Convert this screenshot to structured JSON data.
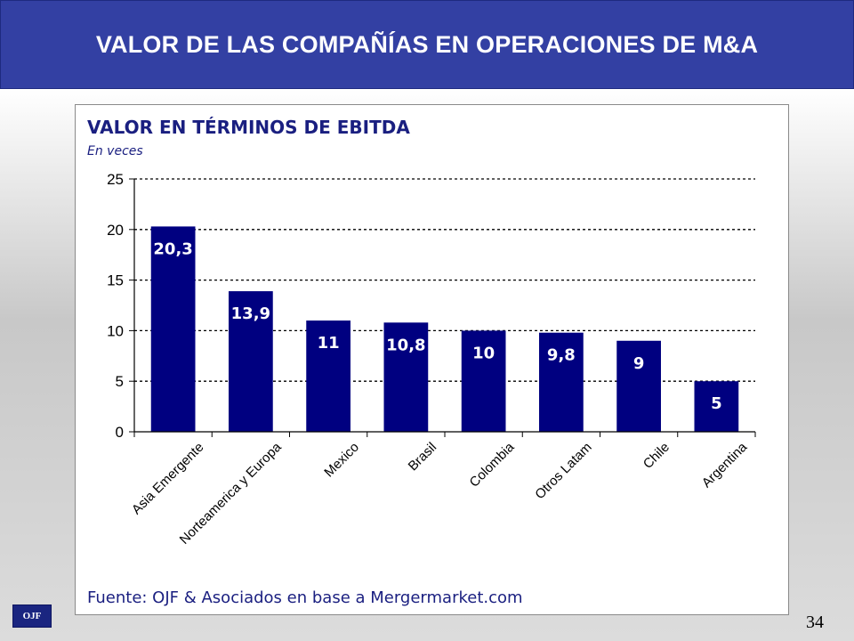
{
  "header": {
    "title": "VALOR DE LAS COMPAÑÍAS EN OPERACIONES DE M&A"
  },
  "chart_data": {
    "type": "bar",
    "title": "VALOR EN TÉRMINOS DE EBITDA",
    "subtitle": "En veces",
    "categories": [
      "Asia Emergente",
      "Norteamerica y Europa",
      "Mexico",
      "Brasil",
      "Colombia",
      "Otros Latam",
      "Chile",
      "Argentina"
    ],
    "values": [
      20.3,
      13.9,
      11,
      10.8,
      10,
      9.8,
      9,
      5
    ],
    "data_labels": [
      "20,3",
      "13,9",
      "11",
      "10,8",
      "10",
      "9,8",
      "9",
      "5"
    ],
    "ylim": [
      0,
      25
    ],
    "yticks": [
      0,
      5,
      10,
      15,
      20,
      25
    ],
    "grid": true,
    "bar_color": "#000080",
    "source": "Fuente: OJF & Asociados en base a Mergermarket.com"
  },
  "footer": {
    "logo_text": "OJF",
    "page_number": "34"
  },
  "colors": {
    "header_bg": "#3340a3",
    "title_text": "#1a1f80",
    "bar": "#000080"
  }
}
